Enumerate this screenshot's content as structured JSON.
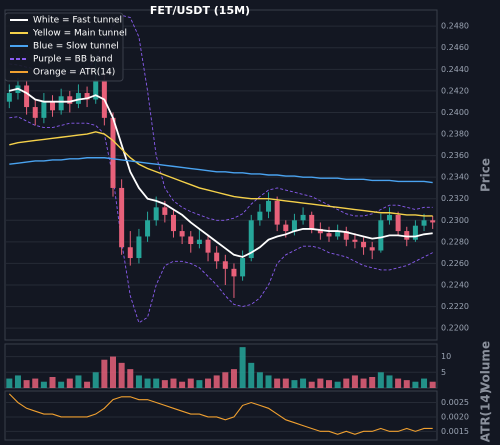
{
  "chart_data": [
    {
      "type": "candlestick",
      "title": "FET/USDT (15M)",
      "ylabel": "Price",
      "grid": true,
      "legend": "upper left",
      "up_color": "#26a69a",
      "down_color": "#e8617a",
      "ylim": [
        0.2189,
        0.2495
      ],
      "yticks": [
        {
          "value": 0.22,
          "label": "0.2200"
        },
        {
          "value": 0.222,
          "label": "0.2220"
        },
        {
          "value": 0.224,
          "label": "0.2240"
        },
        {
          "value": 0.226,
          "label": "0.2260"
        },
        {
          "value": 0.228,
          "label": "0.2280"
        },
        {
          "value": 0.23,
          "label": "0.2300"
        },
        {
          "value": 0.232,
          "label": "0.2320"
        },
        {
          "value": 0.234,
          "label": "0.2340"
        },
        {
          "value": 0.236,
          "label": "0.2360"
        },
        {
          "value": 0.238,
          "label": "0.2380"
        },
        {
          "value": 0.24,
          "label": "0.2400"
        },
        {
          "value": 0.242,
          "label": "0.2420"
        },
        {
          "value": 0.244,
          "label": "0.2440"
        },
        {
          "value": 0.246,
          "label": "0.2460"
        },
        {
          "value": 0.248,
          "label": "0.2480"
        }
      ],
      "open": [
        0.241,
        0.2418,
        0.2425,
        0.2405,
        0.2395,
        0.241,
        0.2402,
        0.2415,
        0.2408,
        0.2418,
        0.2412,
        0.243,
        0.2395,
        0.233,
        0.2275,
        0.2265,
        0.2285,
        0.23,
        0.2312,
        0.2305,
        0.229,
        0.2285,
        0.2278,
        0.2282,
        0.227,
        0.2262,
        0.2255,
        0.2248,
        0.2265,
        0.23,
        0.2308,
        0.2318,
        0.2296,
        0.229,
        0.23,
        0.2305,
        0.2292,
        0.2288,
        0.2285,
        0.229,
        0.2282,
        0.228,
        0.2275,
        0.2272,
        0.23,
        0.2305,
        0.229,
        0.2282,
        0.2295,
        0.23
      ],
      "high": [
        0.2426,
        0.2432,
        0.243,
        0.2412,
        0.2418,
        0.2416,
        0.2422,
        0.242,
        0.2426,
        0.2424,
        0.245,
        0.2436,
        0.24,
        0.2338,
        0.229,
        0.2292,
        0.2308,
        0.2322,
        0.2318,
        0.231,
        0.2296,
        0.229,
        0.2292,
        0.2286,
        0.2276,
        0.2268,
        0.226,
        0.2272,
        0.2305,
        0.2315,
        0.2326,
        0.2322,
        0.23,
        0.2306,
        0.2312,
        0.2308,
        0.2298,
        0.2294,
        0.2296,
        0.2294,
        0.2288,
        0.2284,
        0.228,
        0.2306,
        0.2312,
        0.2308,
        0.2294,
        0.23,
        0.2306,
        0.2304
      ],
      "low": [
        0.2404,
        0.2412,
        0.2398,
        0.2388,
        0.239,
        0.2396,
        0.2398,
        0.24,
        0.2404,
        0.2405,
        0.2408,
        0.2388,
        0.2322,
        0.2268,
        0.2258,
        0.226,
        0.228,
        0.2295,
        0.2298,
        0.2284,
        0.2278,
        0.227,
        0.2274,
        0.2262,
        0.2255,
        0.224,
        0.2228,
        0.2244,
        0.2262,
        0.2295,
        0.2302,
        0.229,
        0.2284,
        0.2286,
        0.2296,
        0.2288,
        0.2282,
        0.228,
        0.2282,
        0.2276,
        0.2274,
        0.2268,
        0.2264,
        0.227,
        0.2296,
        0.2286,
        0.2276,
        0.228,
        0.229,
        0.2292
      ],
      "close": [
        0.2418,
        0.2425,
        0.2405,
        0.2395,
        0.241,
        0.2402,
        0.2415,
        0.2408,
        0.2418,
        0.2412,
        0.243,
        0.2395,
        0.233,
        0.2275,
        0.2265,
        0.2285,
        0.23,
        0.2312,
        0.2305,
        0.229,
        0.2285,
        0.2278,
        0.2282,
        0.227,
        0.2262,
        0.2255,
        0.2248,
        0.2265,
        0.23,
        0.2308,
        0.2318,
        0.2296,
        0.229,
        0.23,
        0.2305,
        0.2292,
        0.2288,
        0.2285,
        0.229,
        0.2282,
        0.228,
        0.2275,
        0.2272,
        0.23,
        0.2305,
        0.229,
        0.2282,
        0.2295,
        0.23,
        0.2298
      ],
      "series": [
        {
          "name": "White = Fast tunnel",
          "color": "#ffffff",
          "values": [
            0.242,
            0.2422,
            0.2418,
            0.2412,
            0.241,
            0.241,
            0.241,
            0.241,
            0.2412,
            0.2413,
            0.2416,
            0.2412,
            0.2395,
            0.237,
            0.2345,
            0.233,
            0.232,
            0.2318,
            0.2315,
            0.231,
            0.2305,
            0.2298,
            0.2292,
            0.2286,
            0.228,
            0.2274,
            0.2268,
            0.2266,
            0.227,
            0.2275,
            0.2282,
            0.2285,
            0.2287,
            0.229,
            0.2292,
            0.2292,
            0.2291,
            0.229,
            0.229,
            0.2289,
            0.2287,
            0.2285,
            0.2283,
            0.2284,
            0.2286,
            0.2286,
            0.2285,
            0.2285,
            0.2287,
            0.2288
          ]
        },
        {
          "name": "Yellow = Main tunnel",
          "color": "#f5d14a",
          "values": [
            0.237,
            0.2372,
            0.2373,
            0.2374,
            0.2375,
            0.2376,
            0.2377,
            0.2378,
            0.2379,
            0.238,
            0.2382,
            0.238,
            0.2374,
            0.2366,
            0.2358,
            0.2352,
            0.2348,
            0.2345,
            0.2342,
            0.2339,
            0.2336,
            0.2333,
            0.233,
            0.2328,
            0.2326,
            0.2324,
            0.2322,
            0.2321,
            0.232,
            0.232,
            0.232,
            0.2319,
            0.2318,
            0.2317,
            0.2316,
            0.2315,
            0.2314,
            0.2313,
            0.2312,
            0.2311,
            0.231,
            0.2309,
            0.2308,
            0.2307,
            0.2307,
            0.2306,
            0.2305,
            0.2305,
            0.2304,
            0.2304
          ]
        },
        {
          "name": "Blue = Slow tunnel",
          "color": "#4aa3f0",
          "values": [
            0.2352,
            0.2353,
            0.2354,
            0.2355,
            0.2355,
            0.2356,
            0.2356,
            0.2357,
            0.2357,
            0.2358,
            0.2358,
            0.2358,
            0.2357,
            0.2356,
            0.2355,
            0.2354,
            0.2353,
            0.2352,
            0.2351,
            0.235,
            0.2349,
            0.2348,
            0.2347,
            0.2346,
            0.2345,
            0.2345,
            0.2344,
            0.2344,
            0.2343,
            0.2343,
            0.2342,
            0.2342,
            0.2341,
            0.2341,
            0.234,
            0.234,
            0.2339,
            0.2339,
            0.2339,
            0.2338,
            0.2338,
            0.2338,
            0.2337,
            0.2337,
            0.2337,
            0.2336,
            0.2336,
            0.2336,
            0.2336,
            0.2335
          ]
        },
        {
          "name": "Purple = BB band",
          "color": "#8a5cf0",
          "dashed": true,
          "upper": [
            0.2445,
            0.2444,
            0.2442,
            0.244,
            0.2438,
            0.2436,
            0.2436,
            0.2437,
            0.2438,
            0.244,
            0.245,
            0.2465,
            0.248,
            0.249,
            0.2488,
            0.247,
            0.242,
            0.236,
            0.233,
            0.2318,
            0.2312,
            0.2308,
            0.2305,
            0.2302,
            0.23,
            0.23,
            0.2302,
            0.2306,
            0.2315,
            0.2322,
            0.2328,
            0.233,
            0.2328,
            0.2326,
            0.2324,
            0.2322,
            0.2318,
            0.2314,
            0.231,
            0.2306,
            0.2304,
            0.2304,
            0.2306,
            0.231,
            0.2314,
            0.2314,
            0.2312,
            0.231,
            0.2312,
            0.2312
          ],
          "lower": [
            0.2395,
            0.2396,
            0.2392,
            0.2388,
            0.2386,
            0.2386,
            0.2388,
            0.239,
            0.239,
            0.239,
            0.2388,
            0.238,
            0.234,
            0.228,
            0.223,
            0.2205,
            0.221,
            0.224,
            0.2258,
            0.2262,
            0.2262,
            0.226,
            0.2256,
            0.2248,
            0.224,
            0.223,
            0.2222,
            0.222,
            0.2222,
            0.2228,
            0.224,
            0.226,
            0.2268,
            0.2272,
            0.2276,
            0.2276,
            0.2274,
            0.227,
            0.2268,
            0.2266,
            0.2262,
            0.2258,
            0.2256,
            0.2254,
            0.2254,
            0.2256,
            0.2258,
            0.2262,
            0.2266,
            0.227
          ]
        }
      ]
    },
    {
      "type": "bar",
      "ylabel": "Volume",
      "ylim": [
        0,
        14
      ],
      "yticks": [
        5,
        10
      ],
      "grid": true,
      "values": [
        3,
        4,
        2.5,
        3,
        2,
        3.5,
        2,
        3,
        4,
        2,
        5,
        9,
        10,
        8,
        6,
        4,
        3,
        3,
        2.5,
        3,
        2,
        3,
        2.5,
        3,
        4,
        5,
        6,
        13,
        8,
        5,
        4,
        3,
        3,
        2.5,
        3,
        2,
        3,
        2.5,
        2,
        3,
        4,
        3,
        3.5,
        5,
        4,
        3,
        2.5,
        2,
        3,
        2
      ]
    },
    {
      "type": "line",
      "ylabel": "ATR(14)",
      "ylim": [
        0.0012,
        0.0029
      ],
      "yticks": [
        0.0015,
        {
          "value": 0.002,
          "label": "0.0020"
        },
        0.0025
      ],
      "grid": true,
      "series": [
        {
          "name": "Orange = ATR(14)",
          "color": "#f0a030",
          "values": [
            0.0028,
            0.0025,
            0.0023,
            0.0022,
            0.0021,
            0.0021,
            0.002,
            0.002,
            0.002,
            0.002,
            0.0021,
            0.0023,
            0.0026,
            0.0027,
            0.0027,
            0.0026,
            0.0026,
            0.0025,
            0.0024,
            0.0023,
            0.0022,
            0.0021,
            0.0021,
            0.002,
            0.002,
            0.0019,
            0.002,
            0.0024,
            0.0025,
            0.0024,
            0.0023,
            0.0021,
            0.0019,
            0.0018,
            0.0017,
            0.0016,
            0.0015,
            0.0015,
            0.0014,
            0.0015,
            0.0014,
            0.0015,
            0.0015,
            0.0016,
            0.0015,
            0.0015,
            0.0016,
            0.0015,
            0.0016,
            0.0016
          ]
        }
      ]
    }
  ]
}
